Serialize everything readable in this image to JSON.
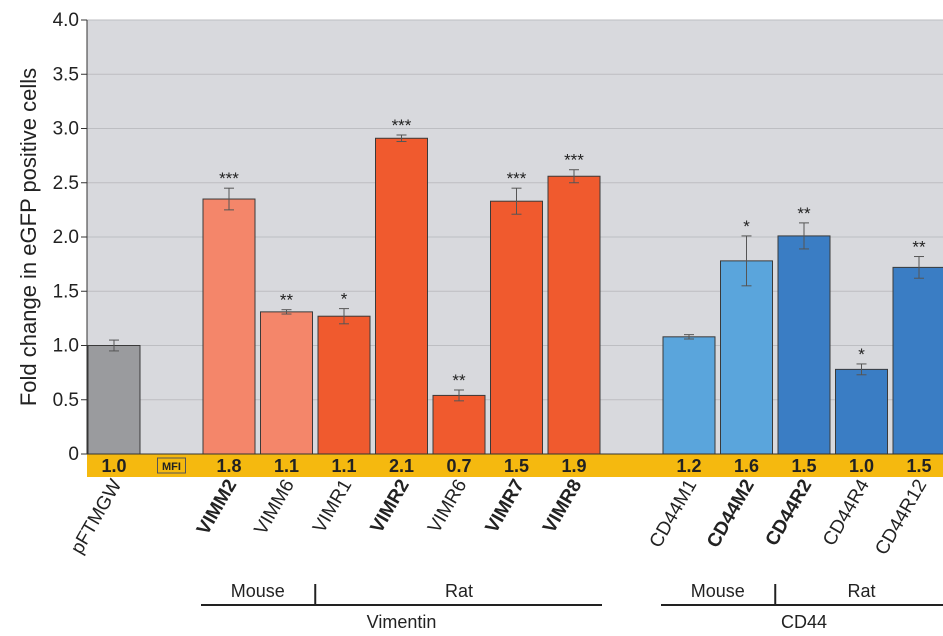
{
  "chart_data": {
    "type": "bar",
    "ylabel": "Fold change in eGFP positive cells",
    "ylim": [
      0,
      4.0
    ],
    "yticks": [
      "0",
      "0.5",
      "1.0",
      "1.5",
      "2.0",
      "2.5",
      "3.0",
      "3.5",
      "4.0"
    ],
    "grid": true,
    "mfi_tag": "MFI",
    "bars": [
      {
        "label": "pFTMGW",
        "value": 1.0,
        "err": 0.05,
        "sig": "",
        "mfi": "1.0",
        "bold": false,
        "color": "#9a9b9e",
        "slot": 0
      },
      {
        "label": "VIMM2",
        "value": 2.35,
        "err": 0.1,
        "sig": "***",
        "mfi": "1.8",
        "bold": true,
        "color": "#f4866a",
        "slot": 2
      },
      {
        "label": "VIMM6",
        "value": 1.31,
        "err": 0.02,
        "sig": "**",
        "mfi": "1.1",
        "bold": false,
        "color": "#f4866a",
        "slot": 3
      },
      {
        "label": "VIMR1",
        "value": 1.27,
        "err": 0.07,
        "sig": "*",
        "mfi": "1.1",
        "bold": false,
        "color": "#f05a2e",
        "slot": 4
      },
      {
        "label": "VIMR2",
        "value": 2.91,
        "err": 0.03,
        "sig": "***",
        "mfi": "2.1",
        "bold": true,
        "color": "#f05a2e",
        "slot": 5
      },
      {
        "label": "VIMR6",
        "value": 0.54,
        "err": 0.05,
        "sig": "**",
        "mfi": "0.7",
        "bold": false,
        "color": "#f05a2e",
        "slot": 6
      },
      {
        "label": "VIMR7",
        "value": 2.33,
        "err": 0.12,
        "sig": "***",
        "mfi": "1.5",
        "bold": true,
        "color": "#f05a2e",
        "slot": 7
      },
      {
        "label": "VIMR8",
        "value": 2.56,
        "err": 0.06,
        "sig": "***",
        "mfi": "1.9",
        "bold": true,
        "color": "#f05a2e",
        "slot": 8
      },
      {
        "label": "CD44M1",
        "value": 1.08,
        "err": 0.02,
        "sig": "",
        "mfi": "1.2",
        "bold": false,
        "color": "#5aa5dc",
        "slot": 10
      },
      {
        "label": "CD44M2",
        "value": 1.78,
        "err": 0.23,
        "sig": "*",
        "mfi": "1.6",
        "bold": true,
        "color": "#5aa5dc",
        "slot": 11
      },
      {
        "label": "CD44R2",
        "value": 2.01,
        "err": 0.12,
        "sig": "**",
        "mfi": "1.5",
        "bold": true,
        "color": "#3a7dc4",
        "slot": 12
      },
      {
        "label": "CD44R4",
        "value": 0.78,
        "err": 0.05,
        "sig": "*",
        "mfi": "1.0",
        "bold": false,
        "color": "#3a7dc4",
        "slot": 13
      },
      {
        "label": "CD44R12",
        "value": 1.72,
        "err": 0.1,
        "sig": "**",
        "mfi": "1.5",
        "bold": false,
        "color": "#3a7dc4",
        "slot": 14
      }
    ],
    "groups": {
      "species": [
        {
          "label": "Mouse",
          "from_slot": 2,
          "to_slot": 3
        },
        {
          "label": "Rat",
          "from_slot": 4,
          "to_slot": 8
        },
        {
          "label": "Mouse",
          "from_slot": 10,
          "to_slot": 11
        },
        {
          "label": "Rat",
          "from_slot": 12,
          "to_slot": 14
        }
      ],
      "markers": [
        {
          "label": "Vimentin",
          "from_slot": 2,
          "to_slot": 8
        },
        {
          "label": "CD44",
          "from_slot": 10,
          "to_slot": 14
        }
      ]
    }
  }
}
